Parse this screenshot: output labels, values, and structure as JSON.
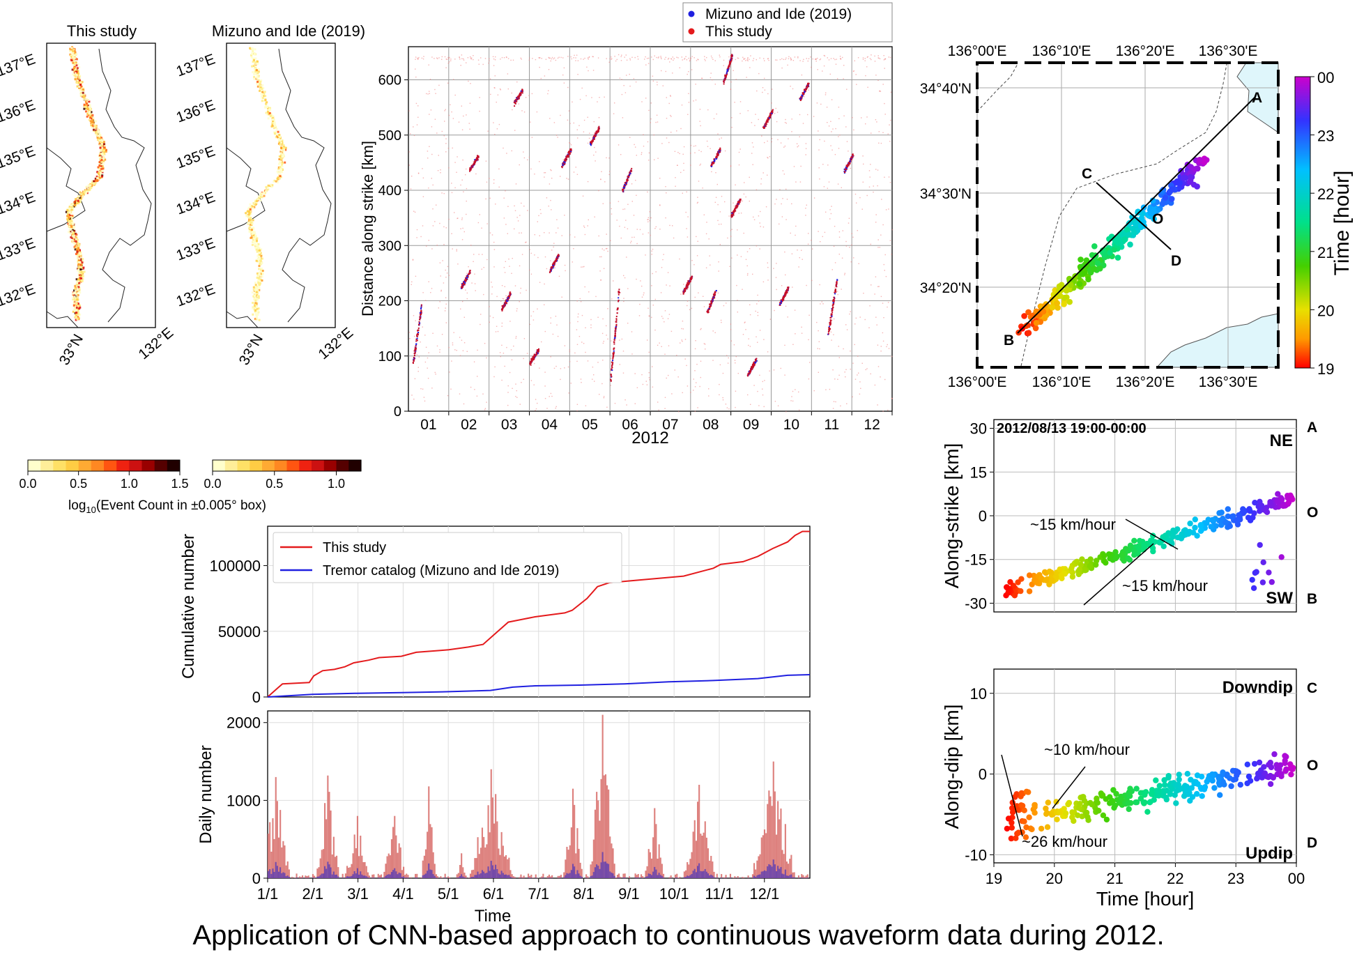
{
  "caption": "Application of CNN-based approach to continuous waveform data during 2012.",
  "colors": {
    "this_study": "#e41a1c",
    "mizuno": "#1f1fe0",
    "grid": "#b0b0b0",
    "sea": "#dff6fb"
  },
  "chart_data": [
    {
      "id": "density-this-study",
      "type": "heatmap",
      "title": "This study",
      "xlabel": "",
      "ylabel": "",
      "y_tick_labels": [
        "137°E",
        "136°E",
        "135°E",
        "134°E",
        "133°E",
        "132°E"
      ],
      "x_tick_labels": [
        "33°N",
        "132°E"
      ],
      "colorbar": {
        "label": "log10(Event Count in ±0.005° box)",
        "ticks": [
          "0.0",
          "0.5",
          "1.0",
          "1.5"
        ],
        "range": [
          0,
          1.5
        ]
      }
    },
    {
      "id": "density-mizuno",
      "type": "heatmap",
      "title": "Mizuno and Ide (2019)",
      "xlabel": "",
      "ylabel": "",
      "y_tick_labels": [
        "137°E",
        "136°E",
        "135°E",
        "134°E",
        "133°E",
        "132°E"
      ],
      "x_tick_labels": [
        "33°N",
        "132°E"
      ],
      "colorbar": {
        "label": "",
        "ticks": [
          "0.0",
          "0.5",
          "1.0"
        ],
        "range": [
          0,
          1.2
        ]
      }
    },
    {
      "id": "spacetime",
      "type": "scatter",
      "xlabel": "2012",
      "ylabel": "Distance along strike [km]",
      "ylim": [
        0,
        660
      ],
      "y_ticks": [
        0,
        100,
        200,
        300,
        400,
        500,
        600
      ],
      "x_tick_labels": [
        "01",
        "02",
        "03",
        "04",
        "05",
        "06",
        "07",
        "08",
        "09",
        "10",
        "11",
        "12"
      ],
      "legend": [
        "Mizuno and Ide (2019)",
        "This study"
      ],
      "legend_position": "top-right, outside",
      "episodes": [
        {
          "month": 0.1,
          "km": 140,
          "span": 110
        },
        {
          "month": 1.3,
          "km": 240,
          "span": 30
        },
        {
          "month": 1.5,
          "km": 450,
          "span": 25
        },
        {
          "month": 2.3,
          "km": 200,
          "span": 30
        },
        {
          "month": 2.6,
          "km": 570,
          "span": 25
        },
        {
          "month": 3.0,
          "km": 100,
          "span": 25
        },
        {
          "month": 3.5,
          "km": 270,
          "span": 30
        },
        {
          "month": 3.8,
          "km": 460,
          "span": 30
        },
        {
          "month": 4.5,
          "km": 500,
          "span": 30
        },
        {
          "month": 5.0,
          "km": 140,
          "span": 170
        },
        {
          "month": 5.3,
          "km": 420,
          "span": 40
        },
        {
          "month": 6.8,
          "km": 230,
          "span": 30
        },
        {
          "month": 7.4,
          "km": 200,
          "span": 40
        },
        {
          "month": 7.5,
          "km": 460,
          "span": 30
        },
        {
          "month": 7.8,
          "km": 620,
          "span": 50
        },
        {
          "month": 8.0,
          "km": 370,
          "span": 30
        },
        {
          "month": 8.4,
          "km": 80,
          "span": 30
        },
        {
          "month": 8.8,
          "km": 530,
          "span": 30
        },
        {
          "month": 9.2,
          "km": 210,
          "span": 30
        },
        {
          "month": 9.7,
          "km": 580,
          "span": 30
        },
        {
          "month": 10.4,
          "km": 190,
          "span": 100
        },
        {
          "month": 10.8,
          "km": 450,
          "span": 30
        }
      ]
    },
    {
      "id": "map",
      "type": "scatter",
      "x_tick_labels": [
        "136°00'E",
        "136°10'E",
        "136°20'E",
        "136°30'E"
      ],
      "y_tick_labels": [
        "34°40'N",
        "34°30'N",
        "34°20'N"
      ],
      "points_labels": [
        "A",
        "B",
        "C",
        "D",
        "O"
      ],
      "colorbar": {
        "label": "Time [hour]",
        "ticks": [
          "00",
          "23",
          "22",
          "21",
          "20",
          "19"
        ]
      }
    },
    {
      "id": "along-strike",
      "type": "scatter",
      "title": "2012/08/13 19:00-00:00",
      "ylabel": "Along-strike [km]",
      "xlim": [
        19,
        24
      ],
      "ylim": [
        -33,
        33
      ],
      "y_ticks": [
        30,
        15,
        0,
        -15,
        -30
      ],
      "side_labels": [
        "A",
        "O",
        "B"
      ],
      "corner_labels": [
        "NE",
        "SW"
      ],
      "annotations": [
        "~15 km/hour",
        "~15 km/hour"
      ]
    },
    {
      "id": "along-dip",
      "type": "scatter",
      "xlabel": "Time [hour]",
      "ylabel": "Along-dip [km]",
      "xlim": [
        19,
        24
      ],
      "ylim": [
        -11,
        13
      ],
      "y_ticks": [
        10,
        0,
        -10
      ],
      "x_tick_labels": [
        "19",
        "20",
        "21",
        "22",
        "23",
        "00"
      ],
      "side_labels": [
        "C",
        "O",
        "D"
      ],
      "corner_labels": [
        "Downdip",
        "Updip"
      ],
      "annotations": [
        "~10 km/hour",
        "~26 km/hour"
      ]
    },
    {
      "id": "cumulative",
      "type": "line",
      "ylabel": "Cumulative number",
      "ylim": [
        0,
        130000
      ],
      "y_ticks": [
        0,
        50000,
        100000
      ],
      "series": [
        {
          "name": "This study",
          "color": "#e41a1c",
          "x": [
            0,
            7,
            10,
            28,
            31,
            37,
            45,
            52,
            58,
            68,
            75,
            90,
            100,
            117,
            122,
            135,
            145,
            152,
            162,
            180,
            200,
            205,
            215,
            222,
            230,
            250,
            260,
            280,
            300,
            305,
            320,
            330,
            340,
            350,
            355,
            360,
            365
          ],
          "values": [
            0,
            7000,
            10000,
            11000,
            16000,
            20000,
            21000,
            23000,
            26000,
            28000,
            30000,
            31000,
            34000,
            35500,
            36000,
            38000,
            40000,
            47000,
            57000,
            61000,
            64000,
            66000,
            75000,
            84000,
            87000,
            89000,
            90000,
            92000,
            98000,
            101000,
            103000,
            107000,
            113000,
            118000,
            123000,
            126000,
            126000
          ]
        },
        {
          "name": "Tremor catalog (Mizuno and Ide 2019)",
          "color": "#1f1fe0",
          "x": [
            0,
            30,
            60,
            90,
            120,
            150,
            165,
            180,
            210,
            240,
            270,
            300,
            330,
            350,
            365
          ],
          "values": [
            0,
            2000,
            2800,
            3300,
            4000,
            5000,
            7500,
            8500,
            9000,
            10000,
            11500,
            12500,
            14000,
            16500,
            17000
          ]
        }
      ],
      "legend_position": "top-left"
    },
    {
      "id": "daily",
      "type": "bar",
      "xlabel": "Time",
      "ylabel": "Daily number",
      "ylim": [
        0,
        2150
      ],
      "y_ticks": [
        0,
        1000,
        2000
      ],
      "x_tick_labels": [
        "1/1",
        "2/1",
        "3/1",
        "4/1",
        "5/1",
        "6/1",
        "7/1",
        "8/1",
        "9/1",
        "10/1",
        "11/1",
        "12/1"
      ],
      "bursts": [
        {
          "day": 5,
          "peak": 1300,
          "width": 9
        },
        {
          "day": 40,
          "peak": 1320,
          "width": 7
        },
        {
          "day": 60,
          "peak": 800,
          "width": 8
        },
        {
          "day": 85,
          "peak": 800,
          "width": 7
        },
        {
          "day": 108,
          "peak": 1180,
          "width": 4
        },
        {
          "day": 130,
          "peak": 320,
          "width": 3
        },
        {
          "day": 150,
          "peak": 1400,
          "width": 14
        },
        {
          "day": 205,
          "peak": 1150,
          "width": 6
        },
        {
          "day": 225,
          "peak": 2100,
          "width": 8
        },
        {
          "day": 260,
          "peak": 900,
          "width": 6
        },
        {
          "day": 290,
          "peak": 1200,
          "width": 10
        },
        {
          "day": 340,
          "peak": 1500,
          "width": 14
        }
      ]
    }
  ]
}
